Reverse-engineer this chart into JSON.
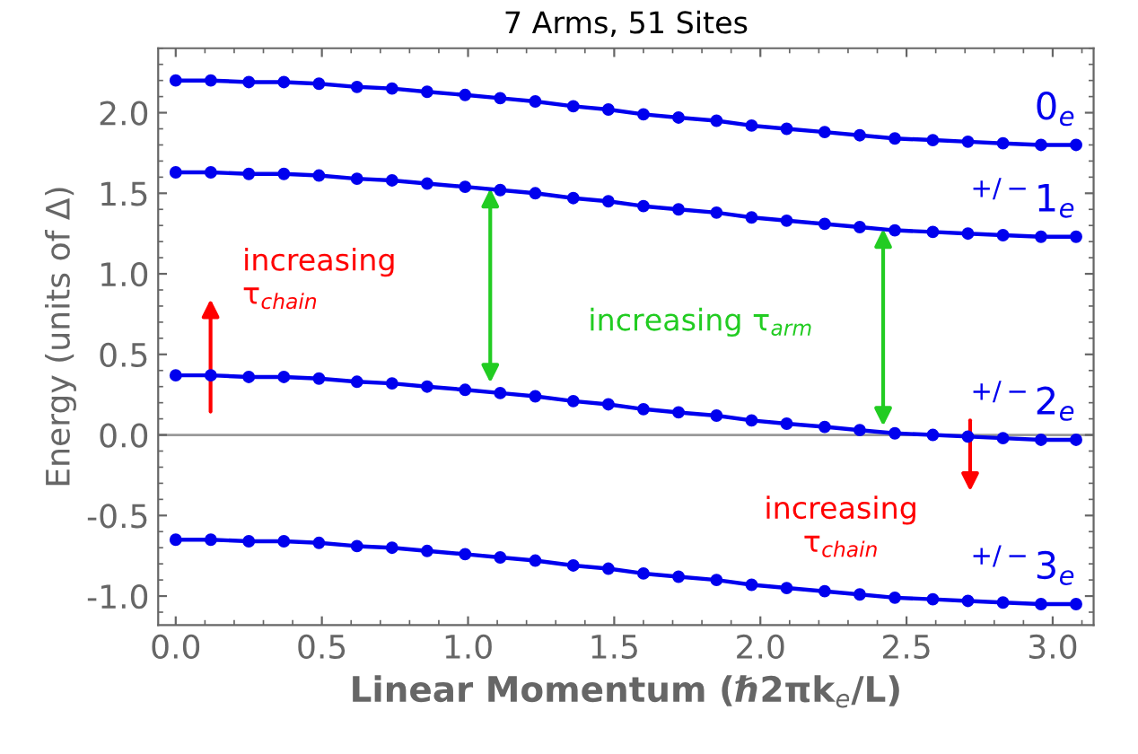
{
  "chart_data": {
    "type": "line",
    "title": "7 Arms, 51 Sites",
    "xlabel": "Linear Momentum (ℏ2πk$_{e}$/L)",
    "ylabel": "Energy (units of Δ)",
    "x": [
      0,
      0.12,
      0.25,
      0.37,
      0.49,
      0.62,
      0.74,
      0.86,
      0.99,
      1.11,
      1.23,
      1.36,
      1.48,
      1.6,
      1.72,
      1.85,
      1.97,
      2.09,
      2.22,
      2.34,
      2.46,
      2.59,
      2.71,
      2.83,
      2.96,
      3.08
    ],
    "series": [
      {
        "name": "0$_{e}$",
        "color": "#0000ee",
        "values": [
          2.2,
          2.2,
          2.19,
          2.19,
          2.18,
          2.16,
          2.15,
          2.13,
          2.11,
          2.09,
          2.07,
          2.04,
          2.02,
          1.99,
          1.97,
          1.95,
          1.92,
          1.9,
          1.88,
          1.86,
          1.84,
          1.83,
          1.82,
          1.81,
          1.8,
          1.8
        ]
      },
      {
        "name": "$^{+/−}$1$_{e}$",
        "color": "#0000ee",
        "values": [
          1.63,
          1.63,
          1.62,
          1.62,
          1.61,
          1.59,
          1.58,
          1.56,
          1.54,
          1.52,
          1.5,
          1.47,
          1.45,
          1.42,
          1.4,
          1.38,
          1.35,
          1.33,
          1.31,
          1.29,
          1.27,
          1.26,
          1.25,
          1.24,
          1.23,
          1.23
        ]
      },
      {
        "name": "$^{+/−}$2$_{e}$",
        "color": "#0000ee",
        "values": [
          0.37,
          0.37,
          0.36,
          0.36,
          0.35,
          0.33,
          0.32,
          0.3,
          0.28,
          0.26,
          0.24,
          0.21,
          0.19,
          0.16,
          0.14,
          0.12,
          0.09,
          0.07,
          0.05,
          0.03,
          0.01,
          0.0,
          -0.01,
          -0.02,
          -0.03,
          -0.03
        ]
      },
      {
        "name": "$^{+/−}$3$_{e}$",
        "color": "#0000ee",
        "values": [
          -0.65,
          -0.65,
          -0.66,
          -0.66,
          -0.67,
          -0.69,
          -0.7,
          -0.72,
          -0.74,
          -0.76,
          -0.78,
          -0.81,
          -0.83,
          -0.86,
          -0.88,
          -0.9,
          -0.93,
          -0.95,
          -0.97,
          -0.99,
          -1.01,
          -1.02,
          -1.03,
          -1.04,
          -1.05,
          -1.05
        ]
      }
    ],
    "xlim": [
      -0.06,
      3.14
    ],
    "ylim": [
      -1.18,
      2.4
    ],
    "xticks": [
      {
        "value": 0,
        "label": "0.0"
      },
      0.5,
      {
        "value": 1,
        "label": "1.0"
      },
      1.5,
      {
        "value": 2,
        "label": "2.0"
      },
      2.5,
      {
        "value": 3,
        "label": "3.0"
      }
    ],
    "yticks": [
      {
        "value": -1,
        "label": "-1.0"
      },
      -0.5,
      {
        "value": 0,
        "label": "0.0"
      },
      0.5,
      {
        "value": 1,
        "label": "1.0"
      },
      1.5,
      {
        "value": 2,
        "label": "2.0"
      }
    ],
    "ref_lines": [
      {
        "axis": "y",
        "value": 0,
        "color": "#999999"
      }
    ],
    "annotations": [
      "increasing\nτ$_{chain}$",
      "increasing τ$_{arm}$",
      "increasing\nτ$_{chain}$"
    ],
    "marker": "circle",
    "line_style": "solid",
    "grid": false,
    "legend": false
  }
}
